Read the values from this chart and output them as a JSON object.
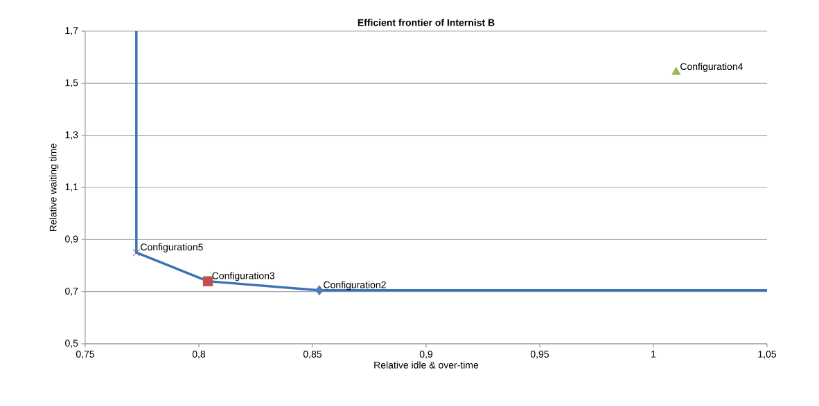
{
  "chart_data": {
    "type": "scatter",
    "title": "Efficient frontier of Internist B",
    "xlabel": "Relative idle & over-time",
    "ylabel": "Relative waiting time",
    "xlim": [
      0.75,
      1.05
    ],
    "ylim": [
      0.5,
      1.7
    ],
    "xticks": [
      {
        "value": 0.75,
        "label": "0,75"
      },
      {
        "value": 0.8,
        "label": "0,8"
      },
      {
        "value": 0.85,
        "label": "0,85"
      },
      {
        "value": 0.9,
        "label": "0,9"
      },
      {
        "value": 0.95,
        "label": "0,95"
      },
      {
        "value": 1,
        "label": "1"
      },
      {
        "value": 1.05,
        "label": "1,05"
      }
    ],
    "yticks": [
      {
        "value": 0.5,
        "label": "0,5"
      },
      {
        "value": 0.7,
        "label": "0,7"
      },
      {
        "value": 0.9,
        "label": "0,9"
      },
      {
        "value": 1.1,
        "label": "1,1"
      },
      {
        "value": 1.3,
        "label": "1,3"
      },
      {
        "value": 1.5,
        "label": "1,5"
      },
      {
        "value": 1.7,
        "label": "1,7"
      }
    ],
    "grid": "y",
    "series": [
      {
        "type": "line",
        "color": "#3a73b9",
        "marker": "none",
        "line_style": "solid",
        "x": [
          0.7725,
          0.7725,
          0.804,
          0.853,
          1.05
        ],
        "values": [
          1.7,
          0.85,
          0.74,
          0.705,
          0.705
        ]
      },
      {
        "name": "Configuration2",
        "color": "#4a7ebb",
        "marker": "diamond",
        "x": [
          0.853
        ],
        "values": [
          0.705
        ]
      },
      {
        "name": "Configuration3",
        "color": "#c0504d",
        "marker": "square",
        "x": [
          0.804
        ],
        "values": [
          0.74
        ]
      },
      {
        "name": "Configuration4",
        "color": "#9bbb59",
        "marker": "triangle",
        "x": [
          1.01
        ],
        "values": [
          1.543
        ]
      },
      {
        "name": "Configuration5",
        "color": "#8064a2",
        "marker": "cross",
        "x": [
          0.7725
        ],
        "values": [
          0.85
        ]
      }
    ]
  }
}
